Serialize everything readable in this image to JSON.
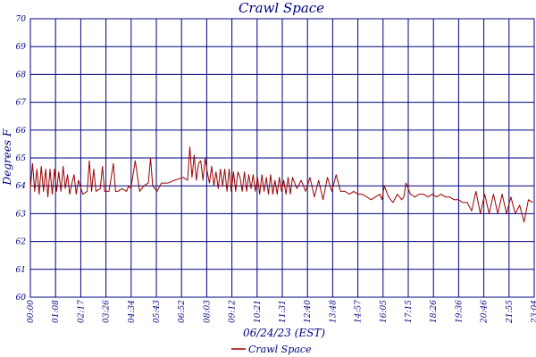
{
  "chart_data": {
    "type": "line",
    "title": "Crawl Space",
    "xlabel": "06/24/23 (EST)",
    "ylabel": "Degrees F",
    "ylim": [
      60,
      70
    ],
    "grid": true,
    "legend_position": "bottom-center",
    "x_ticks": [
      "00:00",
      "01:08",
      "02:17",
      "03:26",
      "04:34",
      "05:43",
      "06:52",
      "08:03",
      "09:12",
      "10:21",
      "11:31",
      "12:40",
      "13:48",
      "14:57",
      "16:05",
      "17:15",
      "18:26",
      "19:36",
      "20:46",
      "21:55",
      "23:04"
    ],
    "y_ticks": [
      60,
      61,
      62,
      63,
      64,
      65,
      66,
      67,
      68,
      69,
      70
    ],
    "x_range_hours": [
      0,
      23.067
    ],
    "series": [
      {
        "name": "Crawl Space",
        "color": "#990000",
        "x_hours": [
          0.0,
          0.1,
          0.2,
          0.3,
          0.4,
          0.5,
          0.6,
          0.7,
          0.8,
          0.9,
          1.0,
          1.1,
          1.2,
          1.3,
          1.4,
          1.5,
          1.6,
          1.7,
          1.8,
          1.9,
          2.0,
          2.1,
          2.2,
          2.4,
          2.6,
          2.7,
          2.8,
          2.9,
          3.0,
          3.2,
          3.3,
          3.4,
          3.6,
          3.8,
          3.9,
          4.0,
          4.2,
          4.4,
          4.5,
          4.6,
          4.8,
          5.0,
          5.2,
          5.4,
          5.5,
          5.6,
          5.8,
          6.0,
          6.3,
          6.6,
          7.0,
          7.2,
          7.3,
          7.4,
          7.5,
          7.6,
          7.7,
          7.8,
          7.9,
          8.0,
          8.1,
          8.2,
          8.3,
          8.4,
          8.5,
          8.6,
          8.7,
          8.8,
          8.9,
          9.0,
          9.1,
          9.2,
          9.3,
          9.4,
          9.5,
          9.6,
          9.7,
          9.8,
          9.9,
          10.0,
          10.1,
          10.2,
          10.3,
          10.4,
          10.5,
          10.6,
          10.7,
          10.8,
          10.9,
          11.0,
          11.1,
          11.2,
          11.3,
          11.4,
          11.5,
          11.6,
          11.7,
          11.8,
          11.9,
          12.0,
          12.2,
          12.4,
          12.6,
          12.8,
          13.0,
          13.2,
          13.4,
          13.6,
          13.8,
          14.0,
          14.2,
          14.4,
          14.6,
          14.8,
          15.0,
          15.2,
          15.4,
          15.6,
          15.8,
          16.0,
          16.1,
          16.2,
          16.4,
          16.6,
          16.8,
          17.0,
          17.1,
          17.2,
          17.4,
          17.6,
          17.8,
          18.0,
          18.2,
          18.4,
          18.6,
          18.8,
          19.0,
          19.2,
          19.4,
          19.6,
          19.8,
          20.0,
          20.2,
          20.4,
          20.6,
          20.8,
          21.0,
          21.2,
          21.4,
          21.6,
          21.8,
          22.0,
          22.2,
          22.4,
          22.6,
          22.8,
          23.0
        ],
        "values": [
          63.9,
          64.8,
          63.8,
          64.6,
          63.7,
          64.7,
          63.8,
          64.6,
          63.6,
          64.6,
          63.7,
          64.6,
          63.8,
          64.5,
          63.8,
          64.7,
          63.9,
          64.4,
          63.7,
          64.1,
          64.4,
          63.7,
          64.2,
          63.7,
          63.8,
          64.9,
          63.8,
          64.6,
          63.8,
          63.9,
          64.7,
          63.8,
          63.8,
          64.8,
          63.8,
          63.8,
          63.9,
          63.8,
          64.0,
          63.9,
          64.9,
          63.8,
          64.0,
          64.1,
          65.0,
          64.0,
          63.8,
          64.1,
          64.1,
          64.2,
          64.3,
          64.2,
          65.4,
          64.3,
          65.1,
          64.2,
          64.8,
          64.9,
          64.2,
          65.0,
          64.5,
          64.1,
          64.7,
          64.0,
          64.5,
          63.9,
          64.6,
          64.0,
          64.6,
          63.8,
          64.6,
          63.8,
          64.5,
          63.8,
          64.5,
          64.3,
          63.8,
          64.5,
          63.8,
          64.4,
          63.9,
          64.4,
          63.8,
          64.3,
          63.7,
          64.4,
          63.8,
          64.3,
          63.7,
          64.4,
          63.7,
          64.2,
          63.7,
          64.3,
          63.8,
          64.2,
          63.7,
          64.3,
          63.7,
          64.3,
          63.9,
          64.2,
          63.8,
          64.3,
          63.6,
          64.2,
          63.5,
          64.3,
          63.8,
          64.4,
          63.8,
          63.8,
          63.7,
          63.8,
          63.7,
          63.7,
          63.6,
          63.5,
          63.6,
          63.7,
          63.5,
          64.0,
          63.6,
          63.4,
          63.7,
          63.5,
          63.6,
          64.1,
          63.7,
          63.6,
          63.7,
          63.7,
          63.6,
          63.7,
          63.6,
          63.7,
          63.6,
          63.6,
          63.5,
          63.5,
          63.4,
          63.4,
          63.1,
          63.8,
          63.0,
          63.7,
          63.0,
          63.7,
          63.0,
          63.7,
          63.0,
          63.6,
          63.0,
          63.3,
          62.7,
          63.5,
          63.4
        ]
      }
    ]
  }
}
